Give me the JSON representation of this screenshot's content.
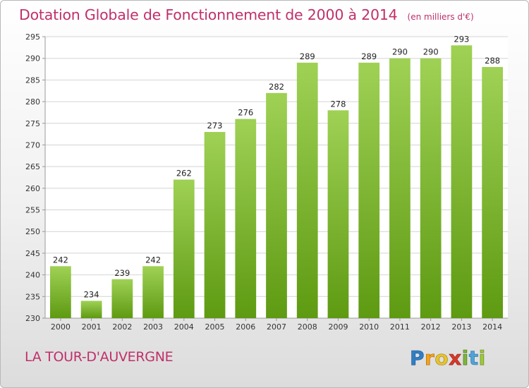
{
  "header": {
    "title": "Dotation Globale de Fonctionnement de 2000 à 2014",
    "unit": "(en milliers d'€)"
  },
  "footer": {
    "commune": "LA TOUR-D'AUVERGNE",
    "brand": "Proxiti"
  },
  "colors": {
    "accent_text": "#c0306a",
    "bar_light": "#9fd155",
    "bar_dark": "#5e9a12",
    "grid": "#d4d4d4"
  },
  "chart_data": {
    "type": "bar",
    "title": "Dotation Globale de Fonctionnement de 2000 à 2014",
    "subtitle": "(en milliers d'€)",
    "xlabel": "",
    "ylabel": "",
    "categories": [
      "2000",
      "2001",
      "2002",
      "2003",
      "2004",
      "2005",
      "2006",
      "2007",
      "2008",
      "2009",
      "2010",
      "2011",
      "2012",
      "2013",
      "2014"
    ],
    "values": [
      242,
      234,
      239,
      242,
      262,
      273,
      276,
      282,
      289,
      278,
      289,
      290,
      290,
      293,
      288
    ],
    "ylim": [
      230,
      295
    ],
    "yticks": [
      230,
      235,
      240,
      245,
      250,
      255,
      260,
      265,
      270,
      275,
      280,
      285,
      290,
      295
    ],
    "grid": true,
    "data_labels": true,
    "legend": "none"
  }
}
